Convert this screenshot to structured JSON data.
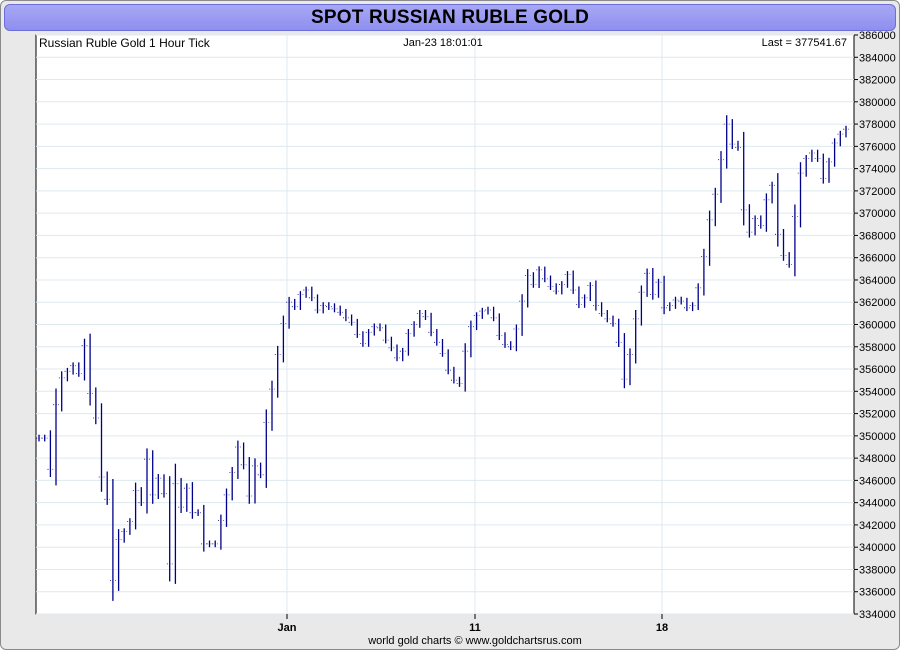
{
  "title": "SPOT RUSSIAN RUBLE GOLD",
  "header": {
    "left": "Russian Ruble Gold 1 Hour Tick",
    "center": "Jan-23  18:01:01",
    "right": "Last = 377541.67"
  },
  "footer": "world gold charts © www.goldchartsrus.com",
  "colors": {
    "bars": "#00008b",
    "title_bg": "#9b9bf2",
    "grid": "#dde9ef"
  },
  "chart_data": {
    "type": "line",
    "title": "SPOT RUSSIAN RUBLE GOLD",
    "xlabel": "",
    "ylabel": "",
    "ylim": [
      334000,
      386000
    ],
    "y_ticks": [
      "386000",
      "384000",
      "382000",
      "380000",
      "378000",
      "376000",
      "374000",
      "372000",
      "370000",
      "368000",
      "366000",
      "364000",
      "362000",
      "360000",
      "358000",
      "356000",
      "354000",
      "352000",
      "350000",
      "348000",
      "346000",
      "344000",
      "342000",
      "340000",
      "338000",
      "336000",
      "334000"
    ],
    "x_tick_labels": [
      "Jan",
      "11",
      "18"
    ],
    "grid": true,
    "series": [
      {
        "values": [
          349800,
          349800,
          347000,
          352800,
          355200,
          355800,
          356300,
          355600,
          358100,
          353800,
          351600,
          346300,
          344300,
          337000,
          340700,
          341400,
          342300,
          345100,
          344000,
          347900,
          344700,
          346200,
          344800,
          338500,
          345700,
          343600,
          345300,
          343100,
          343100,
          340300,
          340300,
          340300,
          342400,
          344700,
          346700,
          349000,
          347400,
          344600,
          347300,
          346500,
          351200,
          354200,
          357300,
          360100,
          362000,
          361600,
          362700,
          363100,
          362400,
          361300,
          361700,
          361600,
          361400,
          361100,
          360600,
          360200,
          359100,
          358300,
          359300,
          359800,
          359700,
          358600,
          357900,
          357000,
          357600,
          359200,
          360000,
          361000,
          360700,
          359300,
          358400,
          357400,
          355900,
          355000,
          354700,
          357600,
          359800,
          360800,
          361200,
          361300,
          360600,
          359000,
          358200,
          358000,
          359600,
          362100,
          364400,
          363600,
          364900,
          364100,
          363400,
          363000,
          363600,
          364500,
          363100,
          361800,
          362400,
          363500,
          361700,
          361000,
          360500,
          360100,
          358400,
          355100,
          357300,
          360500,
          362900,
          364600,
          362700,
          363800,
          361500,
          361700,
          362200,
          362100,
          361500,
          361700,
          363300,
          366100,
          369400,
          371700,
          374800,
          378000,
          376200,
          375900,
          370300,
          368300,
          369500,
          368900,
          371200,
          372500,
          368100,
          366200,
          365400,
          369700,
          373600,
          374900,
          375400,
          374900,
          373100,
          374600,
          376300,
          377100,
          377542
        ]
      }
    ]
  }
}
